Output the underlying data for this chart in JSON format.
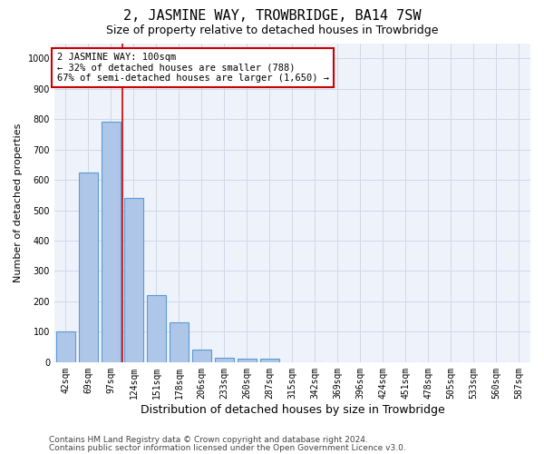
{
  "title": "2, JASMINE WAY, TROWBRIDGE, BA14 7SW",
  "subtitle": "Size of property relative to detached houses in Trowbridge",
  "xlabel": "Distribution of detached houses by size in Trowbridge",
  "ylabel": "Number of detached properties",
  "categories": [
    "42sqm",
    "69sqm",
    "97sqm",
    "124sqm",
    "151sqm",
    "178sqm",
    "206sqm",
    "233sqm",
    "260sqm",
    "287sqm",
    "315sqm",
    "342sqm",
    "369sqm",
    "396sqm",
    "424sqm",
    "451sqm",
    "478sqm",
    "505sqm",
    "533sqm",
    "560sqm",
    "587sqm"
  ],
  "values": [
    102,
    625,
    790,
    540,
    220,
    130,
    40,
    15,
    10,
    10,
    0,
    0,
    0,
    0,
    0,
    0,
    0,
    0,
    0,
    0,
    0
  ],
  "bar_color": "#aec6e8",
  "bar_edgecolor": "#5b9bd5",
  "bar_linewidth": 0.8,
  "redline_index": 2,
  "redline_color": "#cc0000",
  "redline_linewidth": 1.2,
  "annotation_text": "2 JASMINE WAY: 100sqm\n← 32% of detached houses are smaller (788)\n67% of semi-detached houses are larger (1,650) →",
  "annotation_box_color": "#ffffff",
  "annotation_box_edgecolor": "#cc0000",
  "ylim": [
    0,
    1050
  ],
  "yticks": [
    0,
    100,
    200,
    300,
    400,
    500,
    600,
    700,
    800,
    900,
    1000
  ],
  "grid_color": "#d0d8e8",
  "bg_color": "#eef2fb",
  "footer_line1": "Contains HM Land Registry data © Crown copyright and database right 2024.",
  "footer_line2": "Contains public sector information licensed under the Open Government Licence v3.0.",
  "title_fontsize": 11,
  "subtitle_fontsize": 9,
  "xlabel_fontsize": 9,
  "ylabel_fontsize": 8,
  "tick_fontsize": 7,
  "footer_fontsize": 6.5,
  "annotation_fontsize": 7.5
}
